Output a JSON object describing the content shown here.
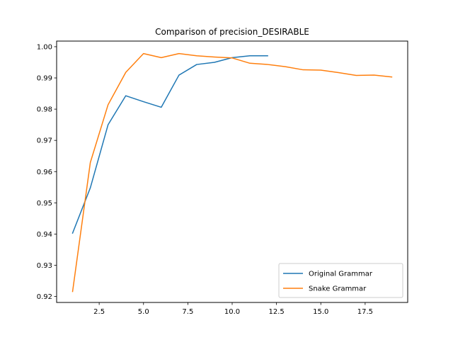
{
  "chart_data": {
    "type": "line",
    "title": "Comparison of precision_DESIRABLE",
    "xlabel": "",
    "ylabel": "",
    "xlim": [
      0.1,
      19.9
    ],
    "ylim": [
      0.9181,
      1.0018
    ],
    "x_ticks": [
      2.5,
      5.0,
      7.5,
      10.0,
      12.5,
      15.0,
      17.5
    ],
    "x_tick_labels": [
      "2.5",
      "5.0",
      "7.5",
      "10.0",
      "12.5",
      "15.0",
      "17.5"
    ],
    "y_ticks": [
      0.92,
      0.93,
      0.94,
      0.95,
      0.96,
      0.97,
      0.98,
      0.99,
      1.0
    ],
    "y_tick_labels": [
      "0.92",
      "0.93",
      "0.94",
      "0.95",
      "0.96",
      "0.97",
      "0.98",
      "0.99",
      "1.00"
    ],
    "grid": false,
    "legend_position": "lower-right",
    "series": [
      {
        "name": "Original Grammar",
        "color": "#1f77b4",
        "x": [
          1,
          2,
          3,
          4,
          5,
          6,
          7,
          8,
          9,
          10,
          11,
          12
        ],
        "y": [
          0.9403,
          0.9548,
          0.975,
          0.9843,
          0.9824,
          0.9806,
          0.9909,
          0.9943,
          0.995,
          0.9965,
          0.9971,
          0.9971
        ]
      },
      {
        "name": "Snake Grammar",
        "color": "#ff7f0e",
        "x": [
          1,
          2,
          3,
          4,
          5,
          6,
          7,
          8,
          9,
          10,
          11,
          12,
          13,
          14,
          15,
          16,
          17,
          18,
          19
        ],
        "y": [
          0.9216,
          0.9629,
          0.9814,
          0.9918,
          0.9978,
          0.9965,
          0.9978,
          0.9971,
          0.9967,
          0.9964,
          0.9947,
          0.9943,
          0.9936,
          0.9926,
          0.9925,
          0.9917,
          0.9908,
          0.9909,
          0.9903
        ]
      }
    ]
  }
}
